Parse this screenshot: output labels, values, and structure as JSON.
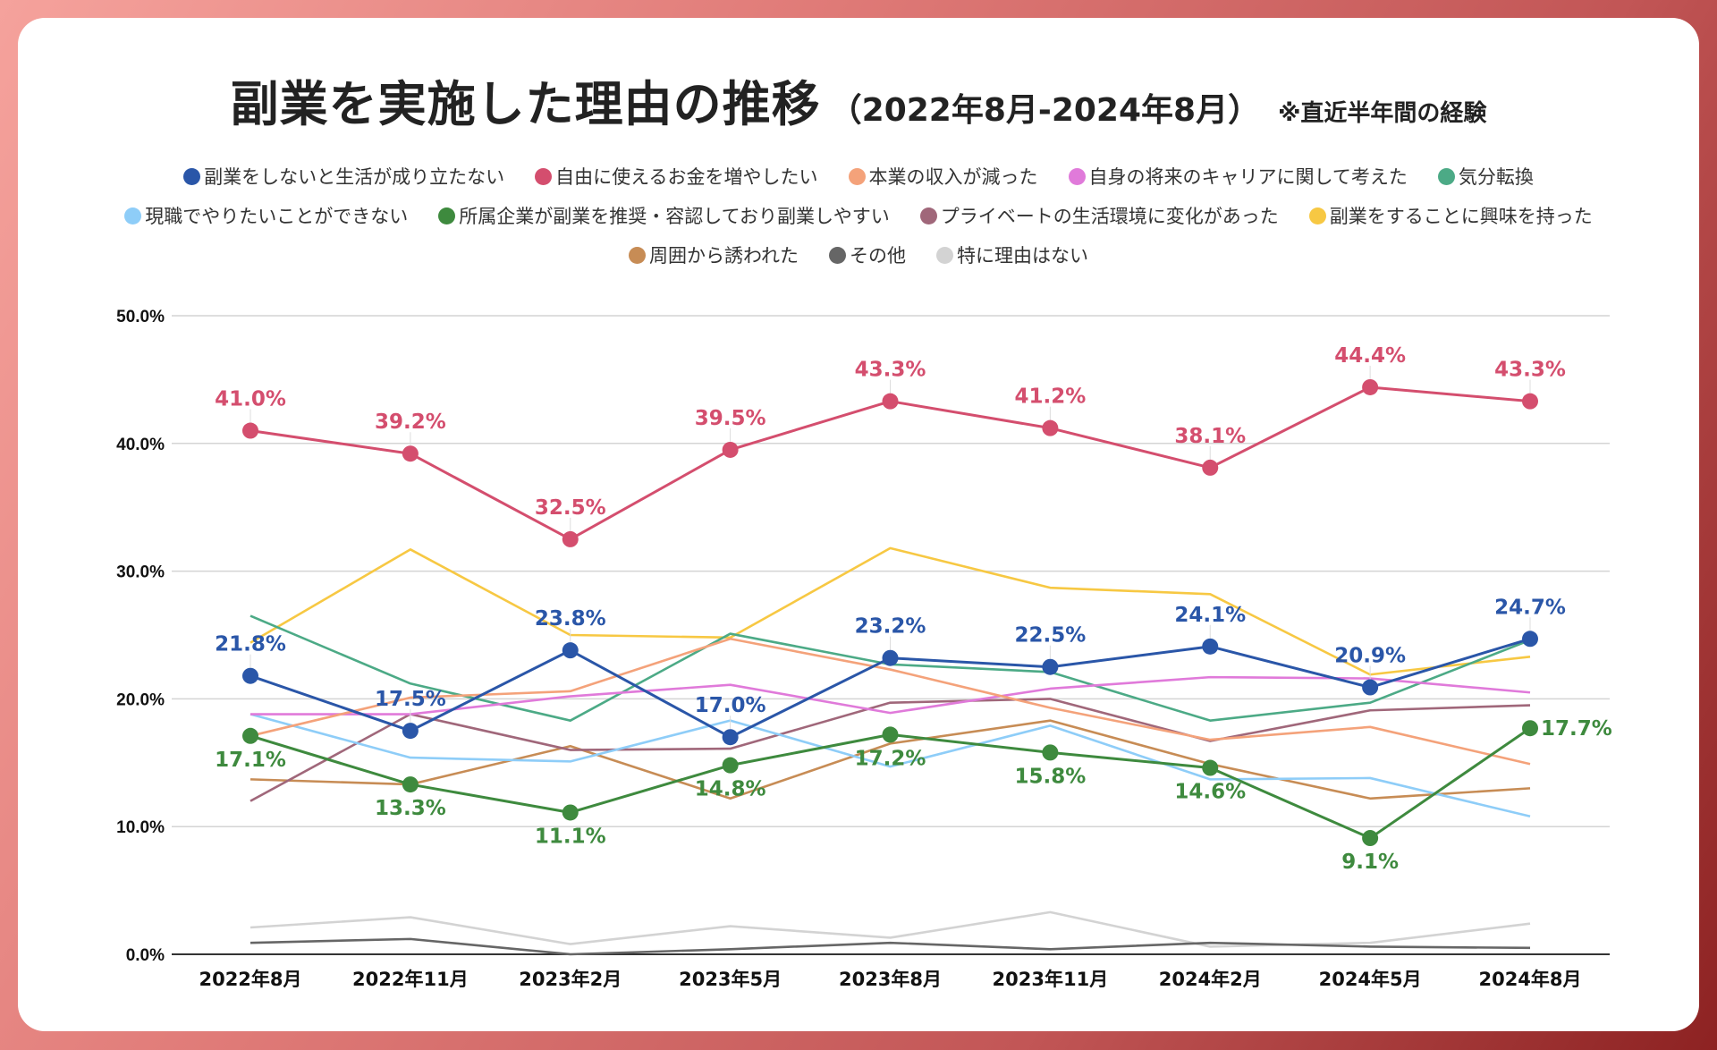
{
  "title": {
    "main": "副業を実施した理由の推移",
    "range": "（2022年8月-2024年8月）",
    "note": "※直近半年間の経験"
  },
  "legend_rows": [
    [
      0,
      1,
      2,
      3,
      4
    ],
    [
      5,
      6,
      7,
      8
    ],
    [
      9,
      10,
      11
    ]
  ],
  "chart_data": {
    "type": "line",
    "title": "副業を実施した理由の推移（2022年8月-2024年8月）※直近半年間の経験",
    "xlabel": "",
    "ylabel": "",
    "ylim": [
      0,
      50
    ],
    "yticks": [
      "0.0%",
      "10.0%",
      "20.0%",
      "30.0%",
      "40.0%",
      "50.0%"
    ],
    "ytick_values": [
      0,
      10,
      20,
      30,
      40,
      50
    ],
    "grid": true,
    "legend_position": "top",
    "categories": [
      "2022年8月",
      "2022年11月",
      "2023年2月",
      "2023年5月",
      "2023年8月",
      "2023年11月",
      "2024年2月",
      "2024年5月",
      "2024年8月"
    ],
    "series": [
      {
        "name": "副業をしないと生活が成り立たない",
        "color": "#2a56a8",
        "markers": true,
        "labels": true,
        "label_pos": [
          "above",
          "above",
          "above",
          "above",
          "above",
          "above",
          "above",
          "above",
          "above"
        ],
        "values": [
          21.8,
          17.5,
          23.8,
          17.0,
          23.2,
          22.5,
          24.1,
          20.9,
          24.7
        ]
      },
      {
        "name": "自由に使えるお金を増やしたい",
        "color": "#d44e6e",
        "markers": true,
        "labels": true,
        "label_pos": [
          "above",
          "above",
          "above",
          "above",
          "above",
          "above",
          "above",
          "above",
          "above"
        ],
        "values": [
          41.0,
          39.2,
          32.5,
          39.5,
          43.3,
          41.2,
          38.1,
          44.4,
          43.3
        ]
      },
      {
        "name": "本業の収入が減った",
        "color": "#f4a27a",
        "markers": false,
        "labels": false,
        "values": [
          17.1,
          20.1,
          20.6,
          24.7,
          22.3,
          19.3,
          16.8,
          17.8,
          14.9
        ]
      },
      {
        "name": "自身の将来のキャリアに関して考えた",
        "color": "#e07ada",
        "markers": false,
        "labels": false,
        "values": [
          18.8,
          18.8,
          20.2,
          21.1,
          18.9,
          20.8,
          21.7,
          21.6,
          20.5
        ]
      },
      {
        "name": "気分転換",
        "color": "#4caa86",
        "markers": false,
        "labels": false,
        "values": [
          26.5,
          21.2,
          18.3,
          25.1,
          22.7,
          22.1,
          18.3,
          19.7,
          24.6
        ]
      },
      {
        "name": "現職でやりたいことができない",
        "color": "#8ecdf8",
        "markers": false,
        "labels": false,
        "values": [
          18.8,
          15.4,
          15.1,
          18.3,
          14.7,
          17.9,
          13.7,
          13.8,
          10.8
        ]
      },
      {
        "name": "所属企業が副業を推奨・容認しており副業しやすい",
        "color": "#3e8a3e",
        "markers": true,
        "labels": true,
        "label_pos": [
          "below",
          "below",
          "below",
          "below",
          "below",
          "below",
          "below",
          "below",
          "right"
        ],
        "values": [
          17.1,
          13.3,
          11.1,
          14.8,
          17.2,
          15.8,
          14.6,
          9.1,
          17.7
        ]
      },
      {
        "name": "プライベートの生活環境に変化があった",
        "color": "#a0677a",
        "markers": false,
        "labels": false,
        "values": [
          12.0,
          18.8,
          16.0,
          16.1,
          19.7,
          20.0,
          16.7,
          19.1,
          19.5
        ]
      },
      {
        "name": "副業をすることに興味を持った",
        "color": "#f7c843",
        "markers": false,
        "labels": false,
        "values": [
          24.4,
          31.7,
          25.0,
          24.8,
          31.8,
          28.7,
          28.2,
          21.9,
          23.3
        ]
      },
      {
        "name": "周囲から誘われた",
        "color": "#c78c55",
        "markers": false,
        "labels": false,
        "values": [
          13.7,
          13.3,
          16.3,
          12.2,
          16.5,
          18.3,
          14.9,
          12.2,
          13.0
        ]
      },
      {
        "name": "その他",
        "color": "#666666",
        "markers": false,
        "labels": false,
        "values": [
          0.9,
          1.2,
          0.0,
          0.4,
          0.9,
          0.4,
          0.9,
          0.6,
          0.5
        ]
      },
      {
        "name": "特に理由はない",
        "color": "#d3d3d3",
        "markers": false,
        "labels": false,
        "values": [
          2.1,
          2.9,
          0.8,
          2.2,
          1.3,
          3.3,
          0.6,
          0.9,
          2.4
        ]
      }
    ]
  }
}
